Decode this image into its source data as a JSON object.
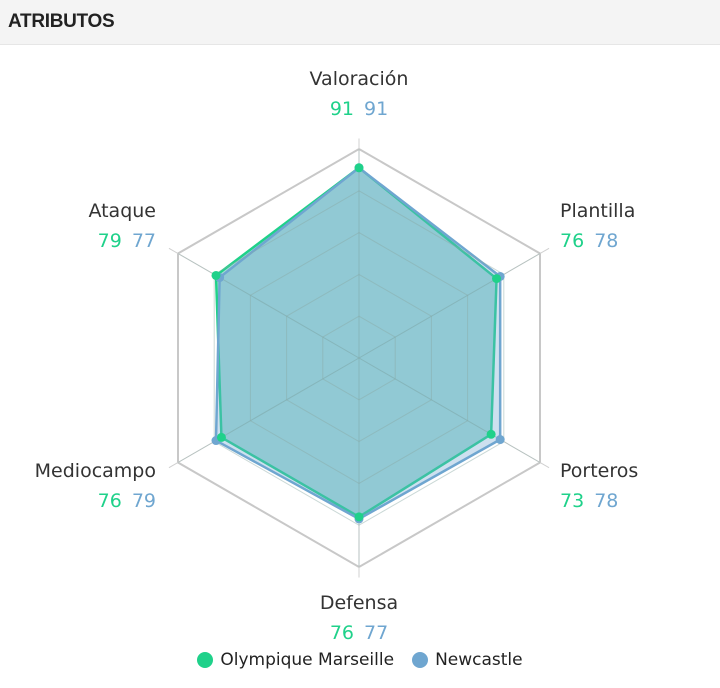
{
  "header": {
    "title": "ATRIBUTOS"
  },
  "chart_data": {
    "type": "radar",
    "categories": [
      "Valoración",
      "Plantilla",
      "Porteros",
      "Defensa",
      "Mediocampo",
      "Ataque"
    ],
    "range": [
      0,
      100
    ],
    "rings": [
      20,
      40,
      60,
      80,
      100
    ],
    "series": [
      {
        "name": "Olympique Marseille",
        "color": "#1fd18a",
        "values": [
          91,
          76,
          73,
          76,
          76,
          79
        ]
      },
      {
        "name": "Newcastle",
        "color": "#6fa6d0",
        "values": [
          91,
          78,
          78,
          77,
          79,
          77
        ]
      }
    ],
    "fill_color": "#66c4bb",
    "legend": "bottom"
  }
}
